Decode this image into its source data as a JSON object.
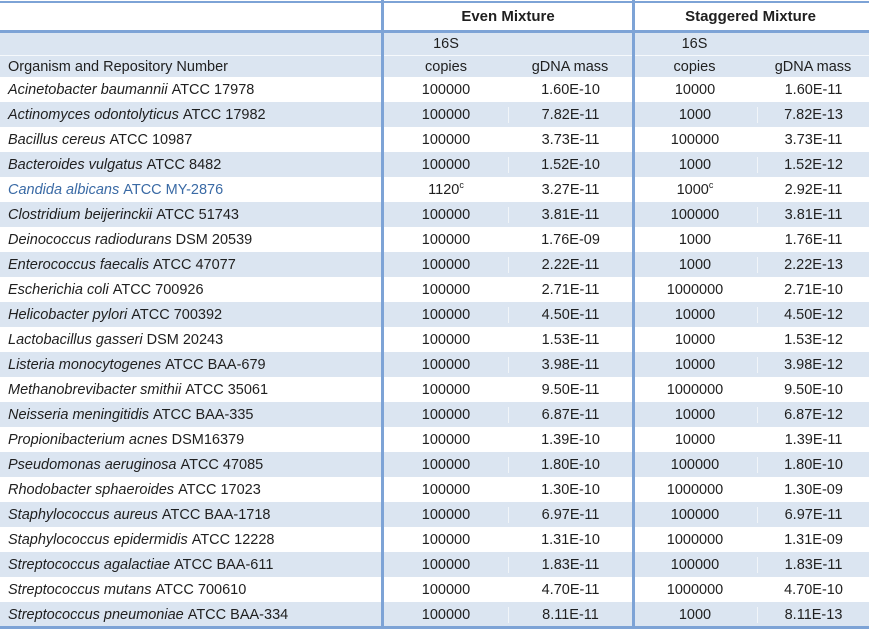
{
  "table": {
    "header": {
      "even_group": "Even Mixture",
      "staggered_group": "Staggered Mixture",
      "sub_16s_even": "16S",
      "sub_16s_staggered": "16S",
      "sub_copies": "copies",
      "sub_gdna": "gDNA mass",
      "organism_col": "Organism and Repository Number"
    },
    "colors": {
      "stripe": "#dbe5f1",
      "border": "#7da3d6",
      "highlight_text": "#3a6aa5",
      "text": "#1f1f1f"
    },
    "rows": [
      {
        "organism": "Acinetobacter baumannii",
        "strain": "ATCC 17978",
        "even_copies": "100000",
        "even_gdna": "1.60E-10",
        "stag_copies": "10000",
        "stag_gdna": "1.60E-11"
      },
      {
        "organism": "Actinomyces odontolyticus",
        "strain": "ATCC 17982",
        "even_copies": "100000",
        "even_gdna": "7.82E-11",
        "stag_copies": "1000",
        "stag_gdna": "7.82E-13"
      },
      {
        "organism": "Bacillus cereus",
        "strain": "ATCC 10987",
        "even_copies": "100000",
        "even_gdna": "3.73E-11",
        "stag_copies": "100000",
        "stag_gdna": "3.73E-11"
      },
      {
        "organism": "Bacteroides vulgatus",
        "strain": "ATCC 8482",
        "even_copies": "100000",
        "even_gdna": "1.52E-10",
        "stag_copies": "1000",
        "stag_gdna": "1.52E-12"
      },
      {
        "organism": "Candida albicans",
        "strain": "ATCC MY-2876",
        "highlight": true,
        "even_copies": "1120",
        "even_copies_sup": "c",
        "even_gdna": "3.27E-11",
        "stag_copies": "1000",
        "stag_copies_sup": "c",
        "stag_gdna": "2.92E-11"
      },
      {
        "organism": "Clostridium beijerinckii",
        "strain": "ATCC 51743",
        "even_copies": "100000",
        "even_gdna": "3.81E-11",
        "stag_copies": "100000",
        "stag_gdna": "3.81E-11"
      },
      {
        "organism": "Deinococcus radiodurans",
        "strain": "DSM 20539",
        "even_copies": "100000",
        "even_gdna": "1.76E-09",
        "stag_copies": "1000",
        "stag_gdna": "1.76E-11"
      },
      {
        "organism": "Enterococcus faecalis",
        "strain": "ATCC 47077",
        "even_copies": "100000",
        "even_gdna": "2.22E-11",
        "stag_copies": "1000",
        "stag_gdna": "2.22E-13"
      },
      {
        "organism": "Escherichia coli",
        "strain": "ATCC 700926",
        "even_copies": "100000",
        "even_gdna": "2.71E-11",
        "stag_copies": "1000000",
        "stag_gdna": "2.71E-10"
      },
      {
        "organism": "Helicobacter pylori",
        "strain": "ATCC 700392",
        "even_copies": "100000",
        "even_gdna": "4.50E-11",
        "stag_copies": "10000",
        "stag_gdna": "4.50E-12"
      },
      {
        "organism": "Lactobacillus gasseri",
        "strain": "DSM 20243",
        "even_copies": "100000",
        "even_gdna": "1.53E-11",
        "stag_copies": "10000",
        "stag_gdna": "1.53E-12"
      },
      {
        "organism": "Listeria monocytogenes",
        "strain": "ATCC BAA-679",
        "even_copies": "100000",
        "even_gdna": "3.98E-11",
        "stag_copies": "10000",
        "stag_gdna": "3.98E-12"
      },
      {
        "organism": "Methanobrevibacter smithii",
        "strain": "ATCC 35061",
        "even_copies": "100000",
        "even_gdna": "9.50E-11",
        "stag_copies": "1000000",
        "stag_gdna": "9.50E-10"
      },
      {
        "organism": "Neisseria meningitidis",
        "strain": "ATCC BAA-335",
        "even_copies": "100000",
        "even_gdna": "6.87E-11",
        "stag_copies": "10000",
        "stag_gdna": "6.87E-12"
      },
      {
        "organism": "Propionibacterium acnes",
        "strain": "DSM16379",
        "even_copies": "100000",
        "even_gdna": "1.39E-10",
        "stag_copies": "10000",
        "stag_gdna": "1.39E-11"
      },
      {
        "organism": "Pseudomonas aeruginosa",
        "strain": "ATCC 47085",
        "even_copies": "100000",
        "even_gdna": "1.80E-10",
        "stag_copies": "100000",
        "stag_gdna": "1.80E-10"
      },
      {
        "organism": "Rhodobacter sphaeroides",
        "strain": "ATCC 17023",
        "even_copies": "100000",
        "even_gdna": "1.30E-10",
        "stag_copies": "1000000",
        "stag_gdna": "1.30E-09"
      },
      {
        "organism": "Staphylococcus aureus",
        "strain": "ATCC BAA-1718",
        "even_copies": "100000",
        "even_gdna": "6.97E-11",
        "stag_copies": "100000",
        "stag_gdna": "6.97E-11"
      },
      {
        "organism": "Staphylococcus epidermidis",
        "strain": "ATCC 12228",
        "even_copies": "100000",
        "even_gdna": "1.31E-10",
        "stag_copies": "1000000",
        "stag_gdna": "1.31E-09"
      },
      {
        "organism": "Streptococcus agalactiae",
        "strain": "ATCC BAA-611",
        "even_copies": "100000",
        "even_gdna": "1.83E-11",
        "stag_copies": "100000",
        "stag_gdna": "1.83E-11"
      },
      {
        "organism": "Streptococcus mutans",
        "strain": "ATCC 700610",
        "even_copies": "100000",
        "even_gdna": "4.70E-11",
        "stag_copies": "1000000",
        "stag_gdna": "4.70E-10"
      },
      {
        "organism": "Streptococcus pneumoniae",
        "strain": "ATCC BAA-334",
        "even_copies": "100000",
        "even_gdna": "8.11E-11",
        "stag_copies": "1000",
        "stag_gdna": "8.11E-13"
      }
    ]
  }
}
